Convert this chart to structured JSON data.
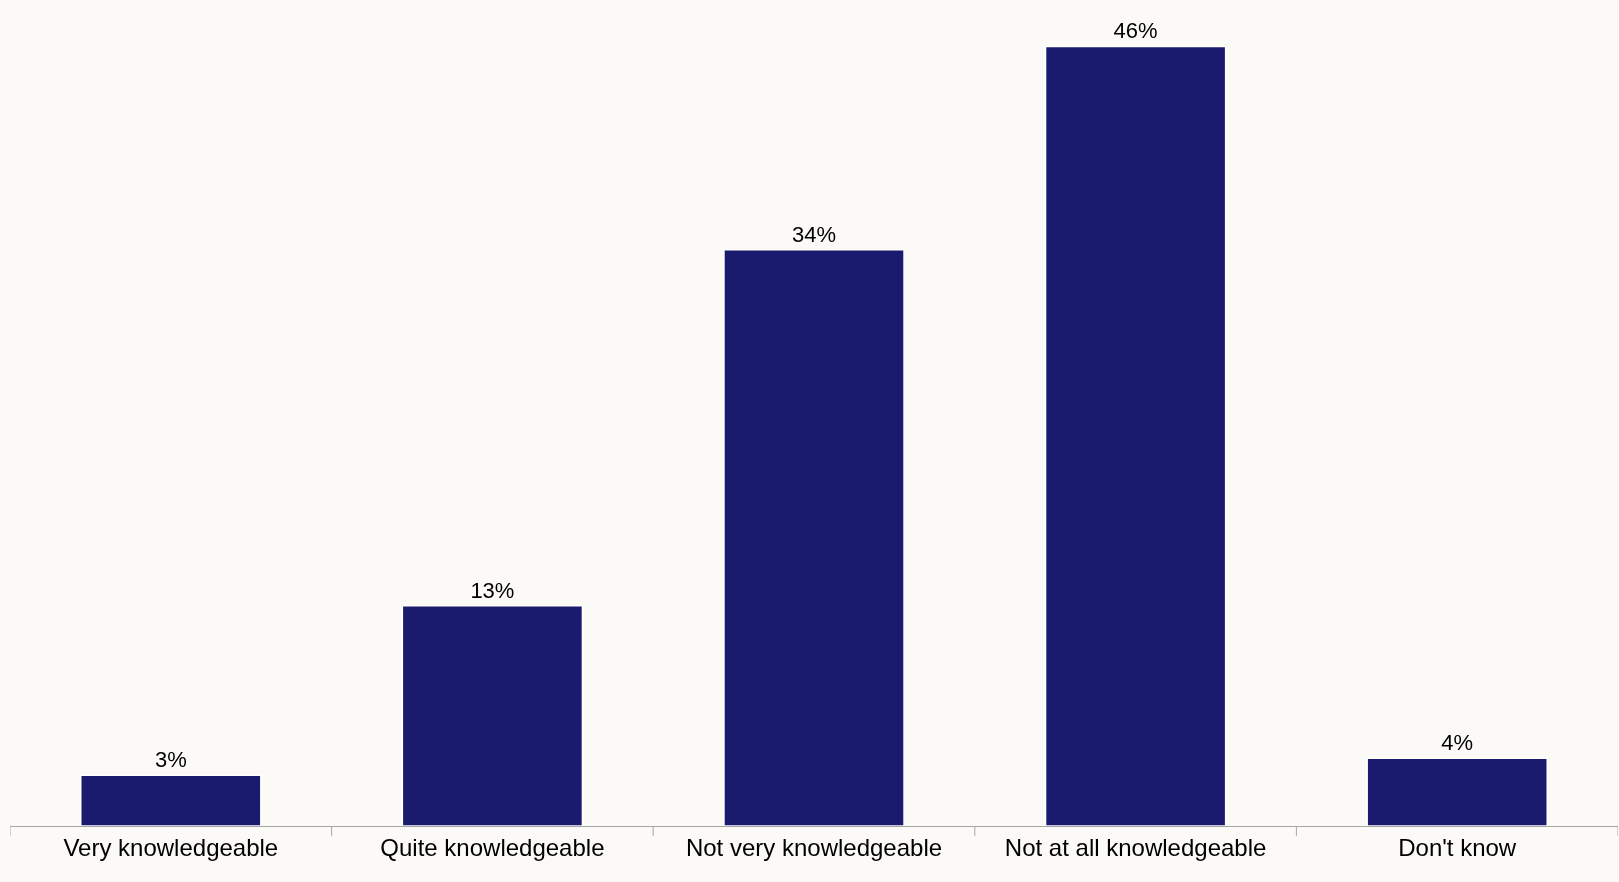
{
  "chart_data": {
    "type": "bar",
    "categories": [
      "Very knowledgeable",
      "Quite knowledgeable",
      "Not very knowledgeable",
      "Not at all knowledgeable",
      "Don't know"
    ],
    "values": [
      3,
      13,
      34,
      46,
      4
    ],
    "value_labels": [
      "3%",
      "13%",
      "34%",
      "46%",
      "4%"
    ],
    "color": "#1a1a6e",
    "grid": false,
    "legend": false,
    "tick_labels": "x"
  }
}
